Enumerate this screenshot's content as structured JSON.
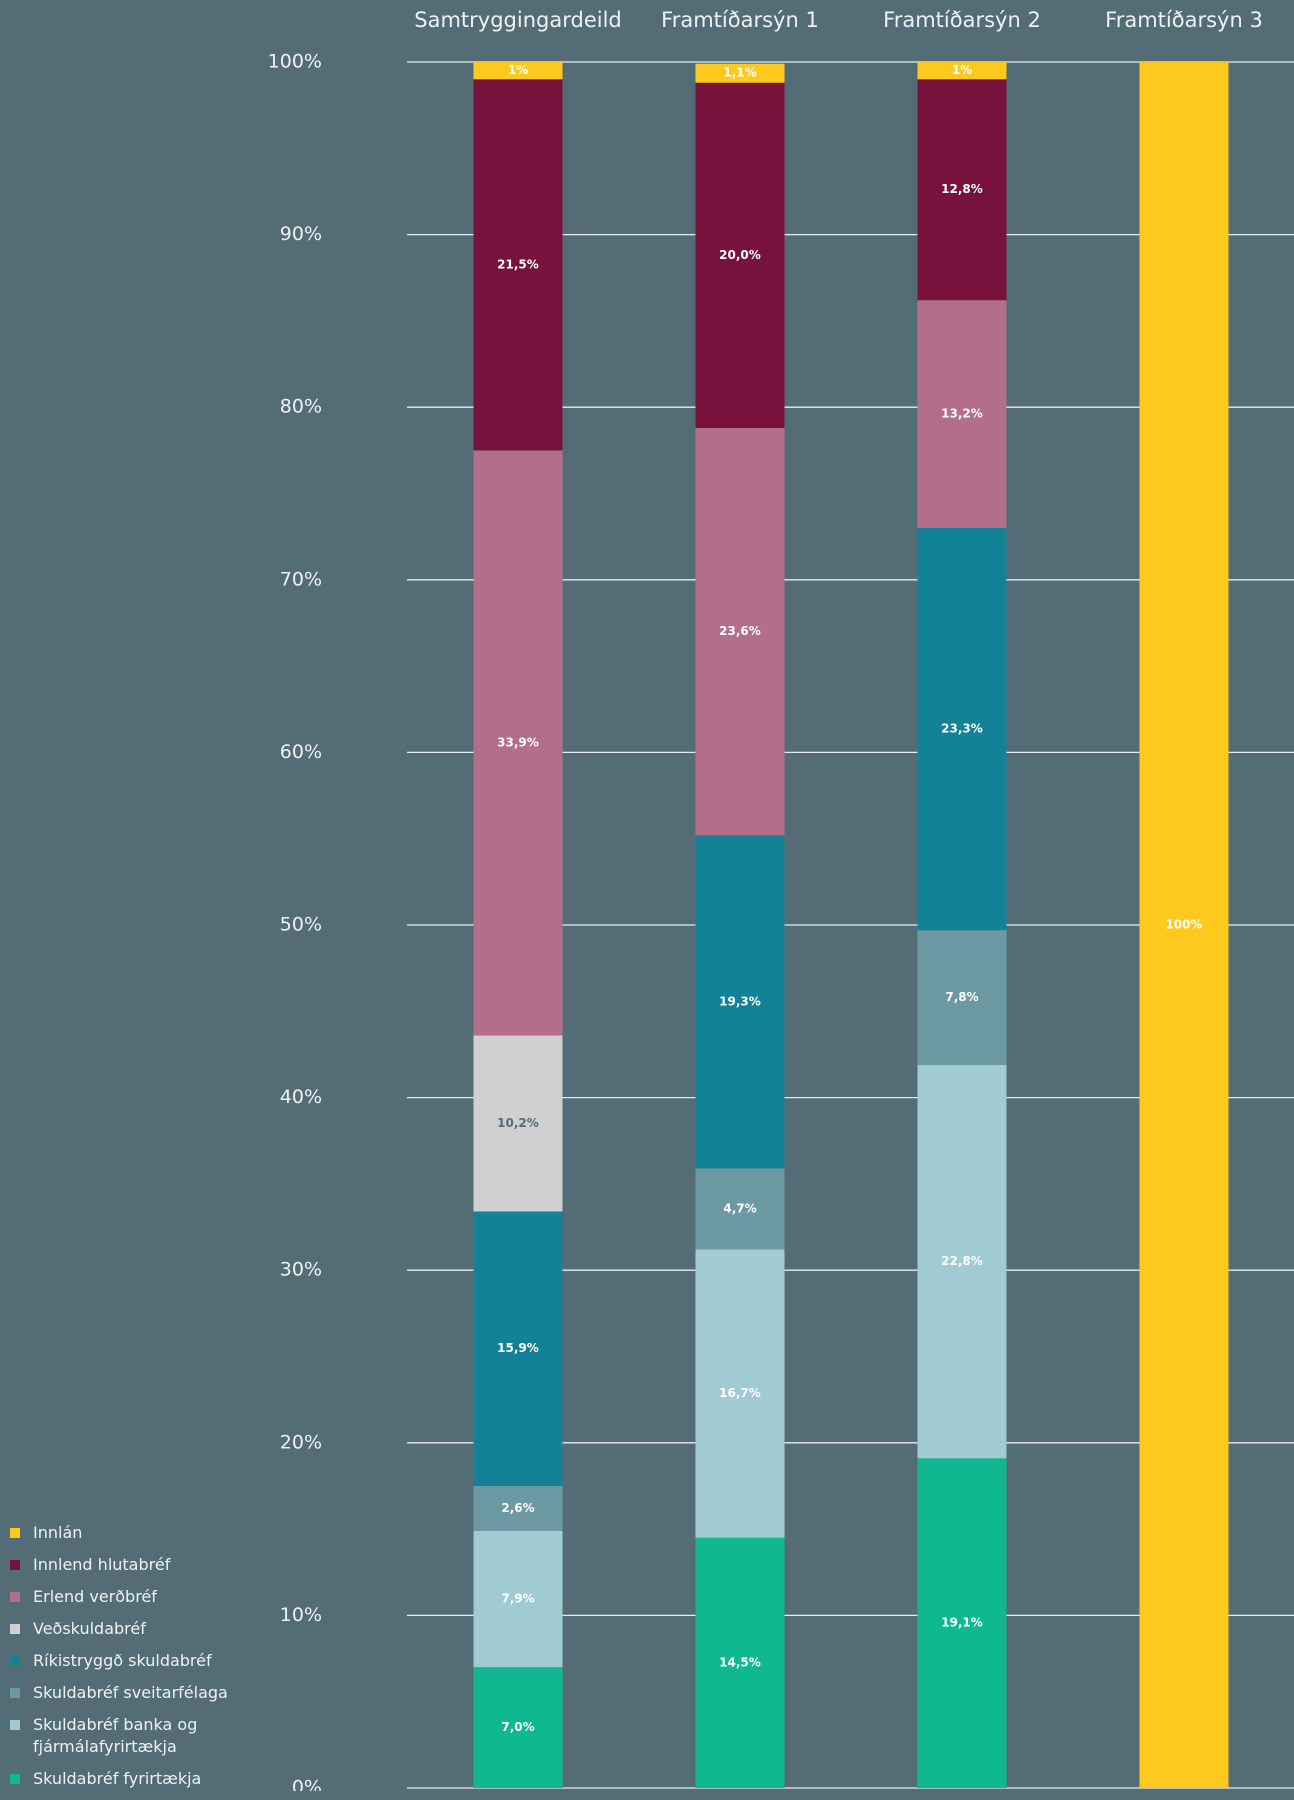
{
  "chart_data": {
    "type": "stacked_bar",
    "categories": [
      "Samtryggingardeild",
      "Framtíðarsýn 1",
      "Framtíðarsýn 2",
      "Framtíðarsýn 3"
    ],
    "ylim": [
      0,
      100
    ],
    "yticks": [
      {
        "value": 0,
        "label": "0%"
      },
      {
        "value": 10,
        "label": "10%"
      },
      {
        "value": 20,
        "label": "20%"
      },
      {
        "value": 30,
        "label": "30%"
      },
      {
        "value": 40,
        "label": "40%"
      },
      {
        "value": 50,
        "label": "50%"
      },
      {
        "value": 60,
        "label": "60%"
      },
      {
        "value": 70,
        "label": "70%"
      },
      {
        "value": 80,
        "label": "80%"
      },
      {
        "value": 90,
        "label": "90%"
      },
      {
        "value": 100,
        "label": "100%"
      }
    ],
    "grid": true,
    "legend": "bottom-left",
    "series": [
      {
        "name": "Skuldabréf fyrirtækja",
        "color": "#10b892",
        "label_color": "#ffffff",
        "values": [
          7.0,
          14.5,
          19.1,
          null
        ],
        "value_labels": [
          "7,0%",
          "14,5%",
          "19,1%",
          null
        ]
      },
      {
        "name": "Skuldabréf banka og fjármálafyrirtækja",
        "color": "#a0cbd3",
        "label_color": "#ffffff",
        "values": [
          7.9,
          16.7,
          22.8,
          null
        ],
        "value_labels": [
          "7,9%",
          "16,7%",
          "22,8%",
          null
        ]
      },
      {
        "name": "Skuldabréf sveitarfélaga",
        "color": "#6d9aa2",
        "label_color": "#ffffff",
        "values": [
          2.6,
          4.7,
          7.8,
          null
        ],
        "value_labels": [
          "2,6%",
          "4,7%",
          "7,8%",
          null
        ]
      },
      {
        "name": "Ríkistryggð skuldabréf",
        "color": "#138296",
        "label_color": "#ffffff",
        "values": [
          15.9,
          19.3,
          23.3,
          null
        ],
        "value_labels": [
          "15,9%",
          "19,3%",
          "23,3%",
          null
        ]
      },
      {
        "name": "Veðskuldabréf",
        "color": "#d0d0d0",
        "label_color": "#546c75",
        "values": [
          10.2,
          null,
          null,
          null
        ],
        "value_labels": [
          "10,2%",
          null,
          null,
          null
        ]
      },
      {
        "name": "Erlend verðbréf",
        "color": "#b36e89",
        "label_color": "#ffffff",
        "values": [
          33.9,
          23.6,
          13.2,
          null
        ],
        "value_labels": [
          "33,9%",
          "23,6%",
          "13,2%",
          null
        ]
      },
      {
        "name": "Innlend hlutabréf",
        "color": "#76123b",
        "label_color": "#ffffff",
        "values": [
          21.5,
          20.0,
          12.8,
          null
        ],
        "value_labels": [
          "21,5%",
          "20,0%",
          "12,8%",
          null
        ]
      },
      {
        "name": "Innlán",
        "color": "#fdc91e",
        "label_color": "#ffffff",
        "values": [
          1,
          1.1,
          1,
          100
        ],
        "value_labels": [
          "1%",
          "1,1%",
          "1%",
          "100%"
        ]
      }
    ]
  }
}
